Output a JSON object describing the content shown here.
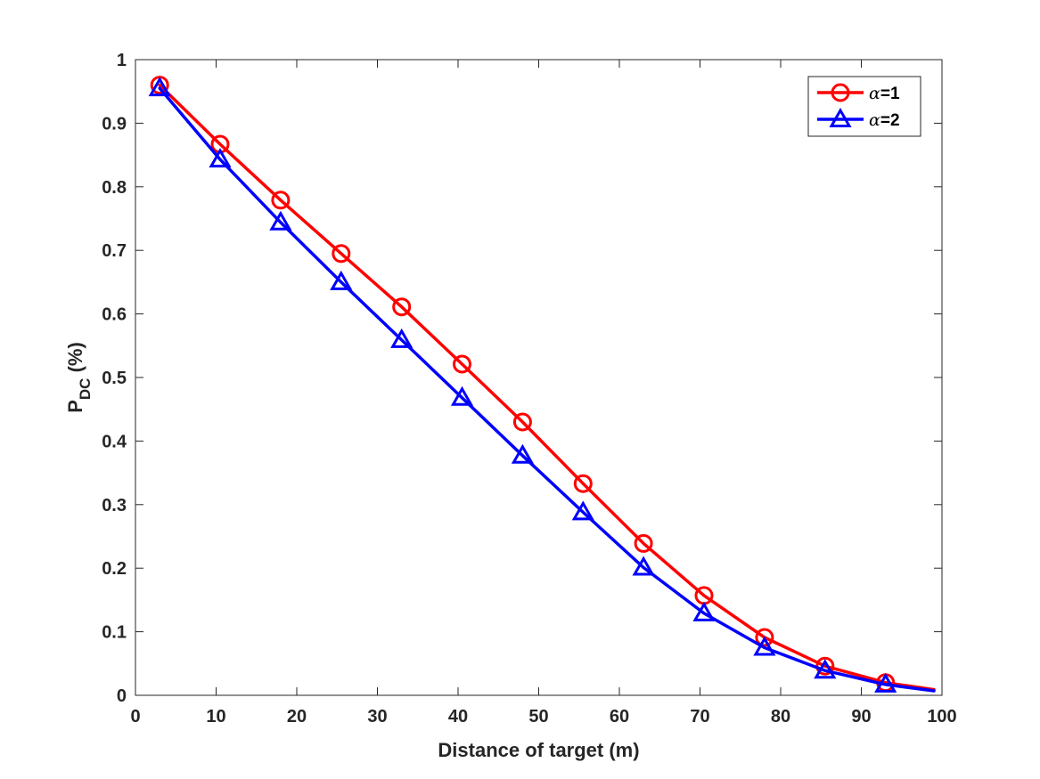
{
  "chart_data": {
    "type": "line",
    "title": "",
    "xlabel": "Distance of target (m)",
    "ylabel_main": "P",
    "ylabel_sub": "DC",
    "ylabel_suffix": " (%)",
    "xlim": [
      0,
      100
    ],
    "ylim": [
      0,
      1
    ],
    "xticks": [
      0,
      10,
      20,
      30,
      40,
      50,
      60,
      70,
      80,
      90,
      100
    ],
    "yticks": [
      0,
      0.1,
      0.2,
      0.3,
      0.4,
      0.5,
      0.6,
      0.7,
      0.8,
      0.9,
      1
    ],
    "ytick_labels": [
      "0",
      "0.1",
      "0.2",
      "0.3",
      "0.4",
      "0.5",
      "0.6",
      "0.7",
      "0.8",
      "0.9",
      "1"
    ],
    "grid": false,
    "legend_position": "top-right",
    "series": [
      {
        "name": "α=1",
        "legend_symbol": "α",
        "legend_value": "=1",
        "color": "#ff0000",
        "marker": "circle",
        "x": [
          3,
          10.5,
          18,
          25.5,
          33,
          40.5,
          48,
          55.5,
          63,
          70.5,
          78,
          85.5,
          93,
          99
        ],
        "values": [
          0.96,
          0.867,
          0.779,
          0.695,
          0.611,
          0.521,
          0.43,
          0.333,
          0.239,
          0.157,
          0.091,
          0.046,
          0.02,
          0.009
        ],
        "marker_indices": [
          0,
          1,
          2,
          3,
          4,
          5,
          6,
          7,
          8,
          9,
          10,
          11,
          12
        ]
      },
      {
        "name": "α=2",
        "legend_symbol": "α",
        "legend_value": "=2",
        "color": "#0000ff",
        "marker": "triangle",
        "x": [
          3,
          10.5,
          18,
          25.5,
          33,
          40.5,
          48,
          55.5,
          63,
          70.5,
          78,
          85.5,
          93,
          99
        ],
        "values": [
          0.955,
          0.843,
          0.744,
          0.65,
          0.559,
          0.468,
          0.377,
          0.288,
          0.201,
          0.129,
          0.075,
          0.039,
          0.017,
          0.007
        ],
        "marker_indices": [
          0,
          1,
          2,
          3,
          4,
          5,
          6,
          7,
          8,
          9,
          10,
          11,
          12
        ]
      }
    ]
  }
}
